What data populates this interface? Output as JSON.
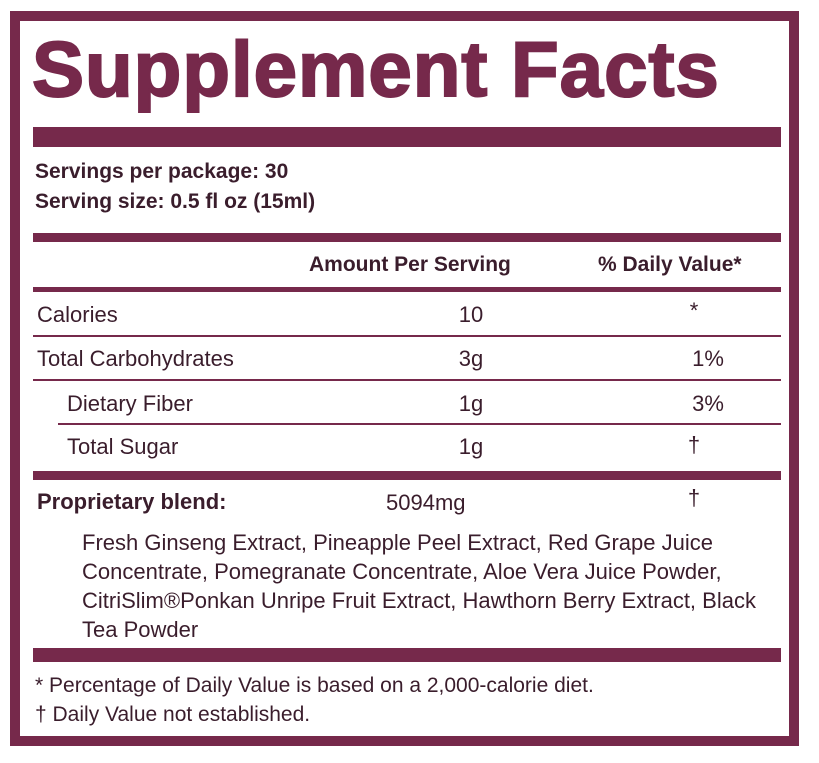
{
  "title": "Supplement Facts",
  "servings": {
    "per_package": "Servings per package: 30",
    "size": "Serving size: 0.5 fl oz (15ml)"
  },
  "header": {
    "amount": "Amount Per Serving",
    "daily_value": "% Daily Value*"
  },
  "rows": [
    {
      "name": "Calories",
      "amount": "10",
      "dv": "*"
    },
    {
      "name": "Total Carbohydrates",
      "amount": "3g",
      "dv": "1%"
    },
    {
      "name": "Dietary Fiber",
      "amount": "1g",
      "dv": "3%"
    },
    {
      "name": "Total Sugar",
      "amount": "1g",
      "dv": "†"
    }
  ],
  "blend": {
    "name": "Proprietary blend:",
    "amount": "5094mg",
    "dv": "†",
    "ingredients": "Fresh Ginseng Extract, Pineapple Peel Extract, Red Grape Juice Concentrate, Pomegranate Concentrate, Aloe Vera Juice Powder, CitriSlim®Ponkan Unripe Fruit Extract, Hawthorn Berry Extract, Black Tea Powder"
  },
  "footnotes": {
    "daily_value": "* Percentage of Daily Value is based on a 2,000-calorie diet.",
    "not_established": "† Daily Value not established."
  },
  "colors": {
    "border": "#76294b",
    "text": "#3a1d2c"
  }
}
